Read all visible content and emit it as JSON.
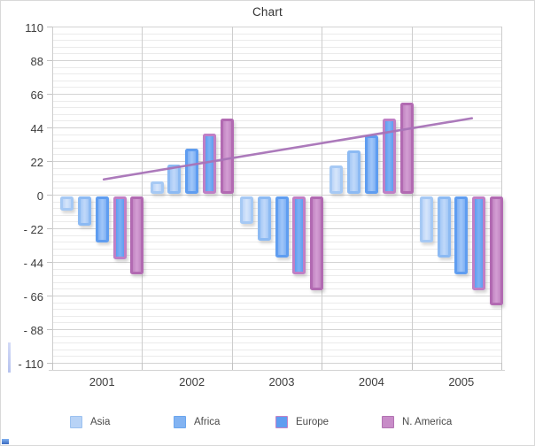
{
  "title": "Chart",
  "chart_data": {
    "type": "bar",
    "title": "Chart",
    "categories": [
      "2001",
      "2002",
      "2003",
      "2004",
      "2005"
    ],
    "series": [
      {
        "legend_label": "Asia",
        "border": "#a6c9f4",
        "fill_center": "#d4e4fa",
        "fill_edge": "#bcd5f8",
        "values": [
          -10,
          9,
          -19,
          19,
          -31
        ]
      },
      {
        "legend_label": "Africa",
        "border": "#8cbaf3",
        "fill_center": "#bed7f9",
        "fill_edge": "#a5c8f6",
        "values": [
          -20,
          20,
          -30,
          29,
          -41
        ]
      },
      {
        "legend_label": "",
        "border": "#5f9df0",
        "fill_center": "#9ec5f8",
        "fill_edge": "#7fb0f4",
        "values": [
          -31,
          30,
          -41,
          39,
          -52
        ]
      },
      {
        "legend_label": "Europe",
        "border": "#c07fc5",
        "fill_center": "#7cafF4",
        "fill_edge": "#5f9df0",
        "values": [
          -42,
          40,
          -52,
          50,
          -62
        ]
      },
      {
        "legend_label": "N. America",
        "border": "#b26ab2",
        "fill_center": "#d29cd2",
        "fill_edge": "#c285c2",
        "values": [
          -52,
          50,
          -62,
          60,
          -72
        ]
      }
    ],
    "trend_line": {
      "start_category": "2001",
      "end_category": "2005",
      "start_value": 10,
      "end_value": 50,
      "color": "#a873b8"
    },
    "y_axis": {
      "min": -110,
      "max": 110,
      "major_step": 22,
      "minor_divisions": 5,
      "tick_labels": [
        "110",
        "88",
        "66",
        "44",
        "22",
        "0",
        "- 22",
        "- 44",
        "- 66",
        "- 88",
        "- 110"
      ]
    },
    "x_axis": {
      "labels": [
        "2001",
        "2002",
        "2003",
        "2004",
        "2005"
      ]
    },
    "legend": [
      {
        "label": "Asia",
        "fill": "#b8d3f6",
        "border": "#9cc2f0"
      },
      {
        "label": "Africa",
        "fill": "#82b3f2",
        "border": "#6ba6ee"
      },
      {
        "label": "Europe",
        "fill": "#5f9df0",
        "border": "#c583c5"
      },
      {
        "label": "N. America",
        "fill": "#c88cc8",
        "border": "#b273b2"
      }
    ],
    "grid": {
      "major_color": "#d3d3d3",
      "minor_color": "#ebebeb",
      "vertical_color": "#cdcdcd",
      "tick_color": "#c2c2c2"
    },
    "ylim": [
      -110,
      110
    ],
    "legend_position": "bottom"
  },
  "decor": {
    "corner_square_top": "#7fb0f0",
    "corner_square_bottom": "#3c6cc0",
    "edge_strip": "#b9c5f0",
    "frame_border": "#d9d9d9"
  }
}
